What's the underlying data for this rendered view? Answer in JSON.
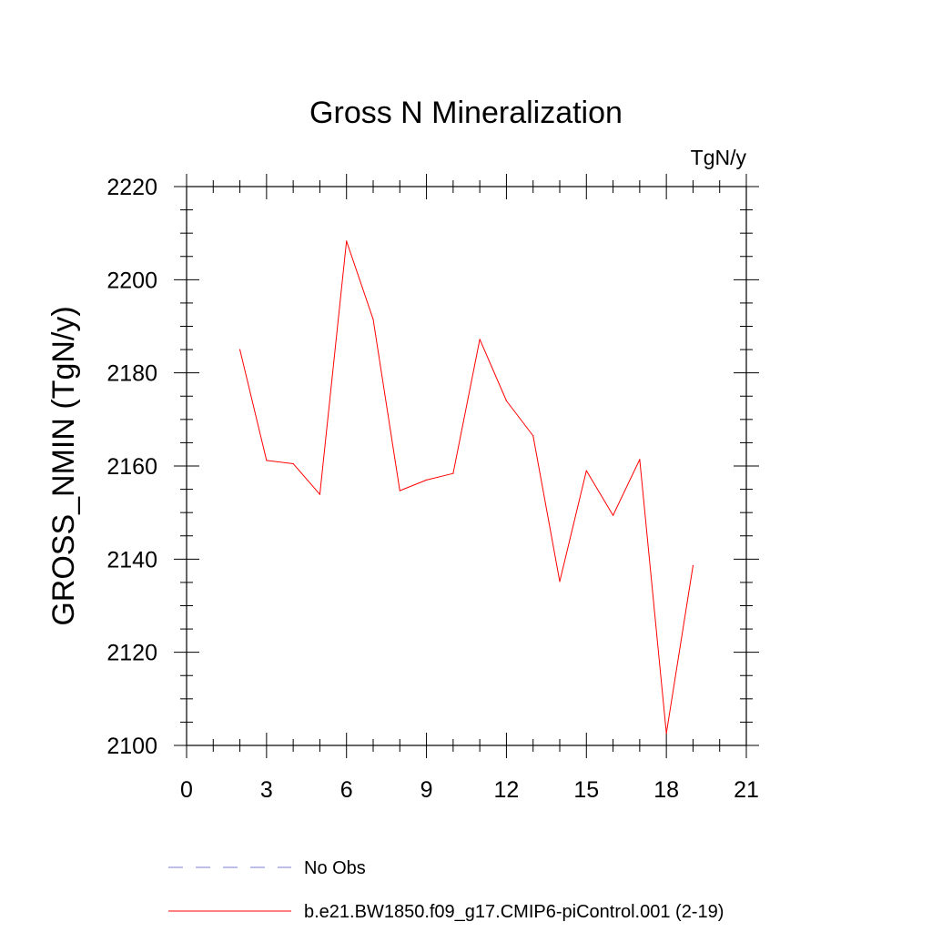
{
  "chart_data": {
    "type": "line",
    "title": "Gross N Mineralization",
    "units_label": "TgN/y",
    "xlabel": "",
    "ylabel": "GROSS_NMIN  (TgN/y)",
    "xlim": [
      0,
      21
    ],
    "ylim": [
      2100,
      2220
    ],
    "x_ticks": [
      0,
      3,
      6,
      9,
      12,
      15,
      18,
      21
    ],
    "y_ticks": [
      2100,
      2120,
      2140,
      2160,
      2180,
      2200,
      2220
    ],
    "x_minor_step": 1,
    "y_minor_step": 5,
    "grid": false,
    "legend_position": "bottom",
    "series": [
      {
        "name": "b.e21.BW1850.f09_g17.CMIP6-piControl.001 (2-19)",
        "color": "#ff0000",
        "dash": "solid",
        "x": [
          2,
          3,
          4,
          5,
          6,
          7,
          8,
          9,
          10,
          11,
          12,
          13,
          14,
          15,
          16,
          17,
          18,
          19
        ],
        "values": [
          2185.0,
          2161.2,
          2160.5,
          2153.9,
          2208.3,
          2191.5,
          2154.7,
          2157.0,
          2158.4,
          2187.2,
          2174.0,
          2166.5,
          2135.2,
          2159.0,
          2149.4,
          2161.4,
          2102.6,
          2138.6
        ]
      }
    ],
    "legend": [
      {
        "label": "No Obs",
        "color": "#7b7bd6",
        "dash": "dashed"
      },
      {
        "label": "b.e21.BW1850.f09_g17.CMIP6-piControl.001 (2-19)",
        "color": "#ff0000",
        "dash": "solid"
      }
    ]
  }
}
